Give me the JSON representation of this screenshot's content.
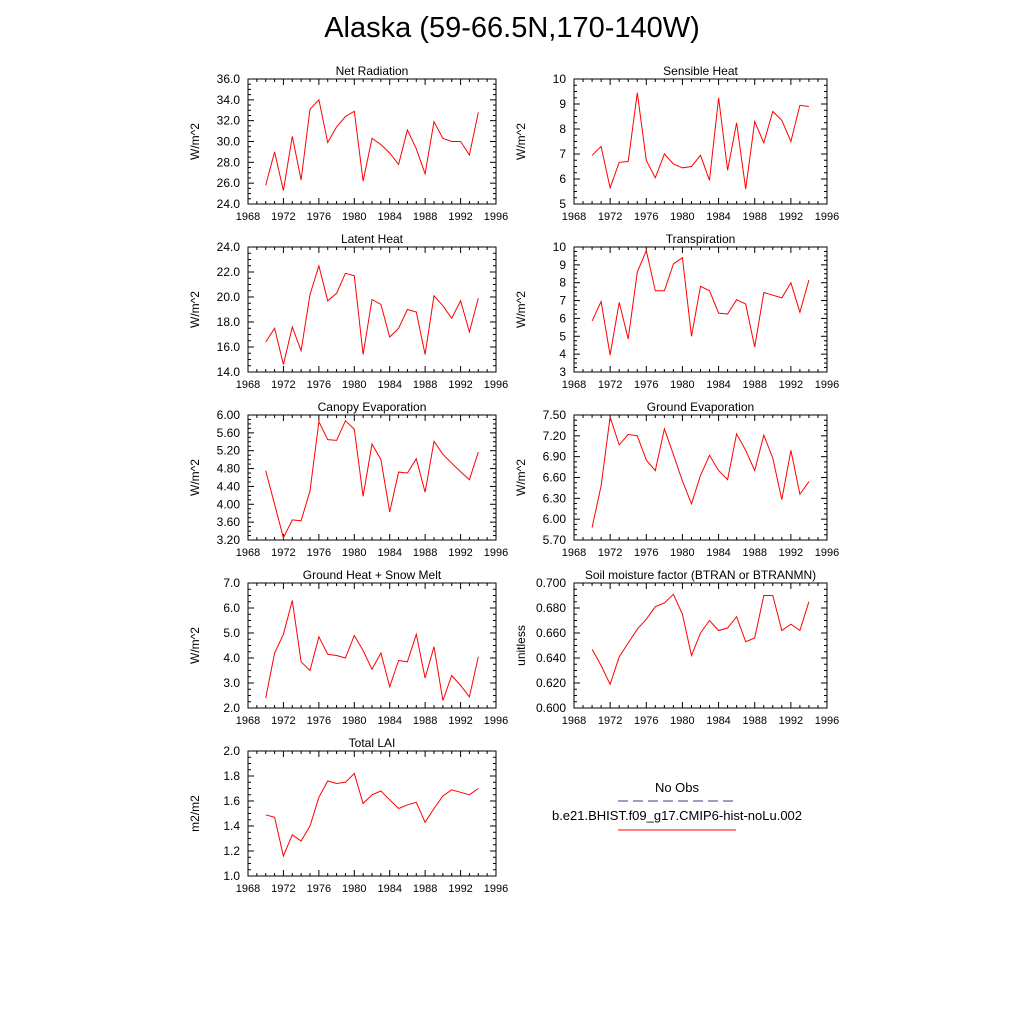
{
  "figure": {
    "title": "Alaska (59-66.5N,170-140W)",
    "legend": {
      "items": [
        {
          "label": "No Obs",
          "color": "#3b3b8c",
          "style": "dashed"
        },
        {
          "label": "b.e21.BHIST.f09_g17.CMIP6-hist-noLu.002",
          "color": "#ff0000",
          "style": "solid"
        }
      ]
    },
    "series_color": "#ff0000"
  },
  "chart_data": [
    {
      "type": "line",
      "title": "Net Radiation",
      "ylabel": "W/m^2",
      "xlim": [
        1968,
        1996
      ],
      "xticks": [
        1968,
        1972,
        1976,
        1980,
        1984,
        1988,
        1992,
        1996
      ],
      "ylim": [
        24,
        36
      ],
      "yticks": [
        "24.0",
        "26.0",
        "28.0",
        "30.0",
        "32.0",
        "34.0",
        "36.0"
      ],
      "x": [
        1970,
        1971,
        1972,
        1973,
        1974,
        1975,
        1976,
        1977,
        1978,
        1979,
        1980,
        1981,
        1982,
        1983,
        1984,
        1985,
        1986,
        1987,
        1988,
        1989,
        1990,
        1991,
        1992,
        1993,
        1994
      ],
      "values": [
        25.8,
        29.0,
        25.3,
        30.5,
        26.3,
        33.1,
        34.0,
        29.9,
        31.4,
        32.4,
        32.9,
        26.2,
        30.3,
        29.7,
        28.9,
        27.8,
        31.1,
        29.3,
        26.9,
        31.9,
        30.3,
        30.0,
        30.0,
        28.7,
        32.8
      ]
    },
    {
      "type": "line",
      "title": "Sensible Heat",
      "ylabel": "W/m^2",
      "xlim": [
        1968,
        1996
      ],
      "xticks": [
        1968,
        1972,
        1976,
        1980,
        1984,
        1988,
        1992,
        1996
      ],
      "ylim": [
        5,
        10
      ],
      "yticks": [
        "5",
        "6",
        "7",
        "8",
        "9",
        "10"
      ],
      "x": [
        1970,
        1971,
        1972,
        1973,
        1974,
        1975,
        1976,
        1977,
        1978,
        1979,
        1980,
        1981,
        1982,
        1983,
        1984,
        1985,
        1986,
        1987,
        1988,
        1989,
        1990,
        1991,
        1992,
        1993,
        1994
      ],
      "values": [
        6.95,
        7.3,
        5.65,
        6.67,
        6.7,
        9.45,
        6.75,
        6.05,
        7.0,
        6.6,
        6.45,
        6.5,
        6.95,
        5.95,
        9.25,
        6.35,
        8.25,
        5.6,
        8.3,
        7.45,
        8.7,
        8.35,
        7.5,
        8.95,
        8.9
      ]
    },
    {
      "type": "line",
      "title": "Latent Heat",
      "ylabel": "W/m^2",
      "xlim": [
        1968,
        1996
      ],
      "xticks": [
        1968,
        1972,
        1976,
        1980,
        1984,
        1988,
        1992,
        1996
      ],
      "ylim": [
        14,
        24
      ],
      "yticks": [
        "14.0",
        "16.0",
        "18.0",
        "20.0",
        "22.0",
        "24.0"
      ],
      "x": [
        1970,
        1971,
        1972,
        1973,
        1974,
        1975,
        1976,
        1977,
        1978,
        1979,
        1980,
        1981,
        1982,
        1983,
        1984,
        1985,
        1986,
        1987,
        1988,
        1989,
        1990,
        1991,
        1992,
        1993,
        1994
      ],
      "values": [
        16.4,
        17.5,
        14.6,
        17.6,
        15.7,
        20.2,
        22.5,
        19.7,
        20.3,
        21.9,
        21.7,
        15.4,
        19.8,
        19.4,
        16.8,
        17.5,
        19.0,
        18.8,
        15.4,
        20.1,
        19.3,
        18.3,
        19.7,
        17.2,
        19.9
      ]
    },
    {
      "type": "line",
      "title": "Transpiration",
      "ylabel": "W/m^2",
      "xlim": [
        1968,
        1996
      ],
      "xticks": [
        1968,
        1972,
        1976,
        1980,
        1984,
        1988,
        1992,
        1996
      ],
      "ylim": [
        3,
        10
      ],
      "yticks": [
        "3",
        "4",
        "5",
        "6",
        "7",
        "8",
        "9",
        "10"
      ],
      "x": [
        1970,
        1971,
        1972,
        1973,
        1974,
        1975,
        1976,
        1977,
        1978,
        1979,
        1980,
        1981,
        1982,
        1983,
        1984,
        1985,
        1986,
        1987,
        1988,
        1989,
        1990,
        1991,
        1992,
        1993,
        1994
      ],
      "values": [
        5.85,
        6.95,
        3.95,
        6.9,
        4.85,
        8.6,
        9.8,
        7.55,
        7.55,
        9.05,
        9.4,
        5.0,
        7.8,
        7.55,
        6.3,
        6.25,
        7.05,
        6.8,
        4.4,
        7.45,
        7.3,
        7.15,
        8.0,
        6.35,
        8.15
      ]
    },
    {
      "type": "line",
      "title": "Canopy Evaporation",
      "ylabel": "W/m^2",
      "xlim": [
        1968,
        1996
      ],
      "xticks": [
        1968,
        1972,
        1976,
        1980,
        1984,
        1988,
        1992,
        1996
      ],
      "ylim": [
        3.2,
        6.0
      ],
      "yticks": [
        "3.20",
        "3.60",
        "4.00",
        "4.40",
        "4.80",
        "5.20",
        "5.60",
        "6.00"
      ],
      "x": [
        1970,
        1971,
        1972,
        1973,
        1974,
        1975,
        1976,
        1977,
        1978,
        1979,
        1980,
        1981,
        1982,
        1983,
        1984,
        1985,
        1986,
        1987,
        1988,
        1989,
        1990,
        1991,
        1992,
        1993,
        1994
      ],
      "values": [
        4.75,
        4.0,
        3.25,
        3.65,
        3.63,
        4.3,
        5.85,
        5.45,
        5.43,
        5.87,
        5.68,
        4.18,
        5.35,
        5.0,
        3.83,
        4.72,
        4.7,
        5.02,
        4.27,
        5.41,
        5.12,
        4.92,
        4.73,
        4.55,
        5.17
      ]
    },
    {
      "type": "line",
      "title": "Ground Evaporation",
      "ylabel": "W/m^2",
      "xlim": [
        1968,
        1996
      ],
      "xticks": [
        1968,
        1972,
        1976,
        1980,
        1984,
        1988,
        1992,
        1996
      ],
      "ylim": [
        5.7,
        7.5
      ],
      "yticks": [
        "5.70",
        "6.00",
        "6.30",
        "6.60",
        "6.90",
        "7.20",
        "7.50"
      ],
      "x": [
        1970,
        1971,
        1972,
        1973,
        1974,
        1975,
        1976,
        1977,
        1978,
        1979,
        1980,
        1981,
        1982,
        1983,
        1984,
        1985,
        1986,
        1987,
        1988,
        1989,
        1990,
        1991,
        1992,
        1993,
        1994
      ],
      "values": [
        5.88,
        6.48,
        7.47,
        7.07,
        7.22,
        7.2,
        6.85,
        6.7,
        7.3,
        6.93,
        6.55,
        6.22,
        6.63,
        6.92,
        6.7,
        6.57,
        7.23,
        6.99,
        6.7,
        7.21,
        6.88,
        6.28,
        6.99,
        6.36,
        6.54
      ]
    },
    {
      "type": "line",
      "title": "Ground Heat + Snow Melt",
      "ylabel": "W/m^2",
      "xlim": [
        1968,
        1996
      ],
      "xticks": [
        1968,
        1972,
        1976,
        1980,
        1984,
        1988,
        1992,
        1996
      ],
      "ylim": [
        2,
        7
      ],
      "yticks": [
        "2.0",
        "3.0",
        "4.0",
        "5.0",
        "6.0",
        "7.0"
      ],
      "x": [
        1970,
        1971,
        1972,
        1973,
        1974,
        1975,
        1976,
        1977,
        1978,
        1979,
        1980,
        1981,
        1982,
        1983,
        1984,
        1985,
        1986,
        1987,
        1988,
        1989,
        1990,
        1991,
        1992,
        1993,
        1994
      ],
      "values": [
        2.4,
        4.2,
        4.95,
        6.3,
        3.85,
        3.5,
        4.85,
        4.15,
        4.1,
        4.0,
        4.9,
        4.3,
        3.55,
        4.2,
        2.85,
        3.9,
        3.85,
        4.95,
        3.2,
        4.45,
        2.3,
        3.3,
        2.9,
        2.45,
        4.05
      ]
    },
    {
      "type": "line",
      "title": "Soil moisture factor (BTRAN or BTRANMN)",
      "ylabel": "unitless",
      "xlim": [
        1968,
        1996
      ],
      "xticks": [
        1968,
        1972,
        1976,
        1980,
        1984,
        1988,
        1992,
        1996
      ],
      "ylim": [
        0.6,
        0.7
      ],
      "yticks": [
        "0.600",
        "0.620",
        "0.640",
        "0.660",
        "0.680",
        "0.700"
      ],
      "x": [
        1970,
        1971,
        1972,
        1973,
        1974,
        1975,
        1976,
        1977,
        1978,
        1979,
        1980,
        1981,
        1982,
        1983,
        1984,
        1985,
        1986,
        1987,
        1988,
        1989,
        1990,
        1991,
        1992,
        1993,
        1994
      ],
      "values": [
        0.647,
        0.634,
        0.619,
        0.641,
        0.652,
        0.663,
        0.671,
        0.681,
        0.684,
        0.691,
        0.675,
        0.642,
        0.66,
        0.67,
        0.662,
        0.664,
        0.673,
        0.653,
        0.656,
        0.69,
        0.69,
        0.662,
        0.667,
        0.662,
        0.685
      ]
    },
    {
      "type": "line",
      "title": "Total LAI",
      "ylabel": "m2/m2",
      "xlim": [
        1968,
        1996
      ],
      "xticks": [
        1968,
        1972,
        1976,
        1980,
        1984,
        1988,
        1992,
        1996
      ],
      "ylim": [
        1.0,
        2.0
      ],
      "yticks": [
        "1.0",
        "1.2",
        "1.4",
        "1.6",
        "1.8",
        "2.0"
      ],
      "x": [
        1970,
        1971,
        1972,
        1973,
        1974,
        1975,
        1976,
        1977,
        1978,
        1979,
        1980,
        1981,
        1982,
        1983,
        1984,
        1985,
        1986,
        1987,
        1988,
        1989,
        1990,
        1991,
        1992,
        1993,
        1994
      ],
      "values": [
        1.49,
        1.47,
        1.16,
        1.33,
        1.28,
        1.4,
        1.63,
        1.76,
        1.74,
        1.75,
        1.82,
        1.58,
        1.65,
        1.68,
        1.61,
        1.54,
        1.57,
        1.59,
        1.43,
        1.54,
        1.64,
        1.69,
        1.67,
        1.65,
        1.7
      ]
    }
  ]
}
